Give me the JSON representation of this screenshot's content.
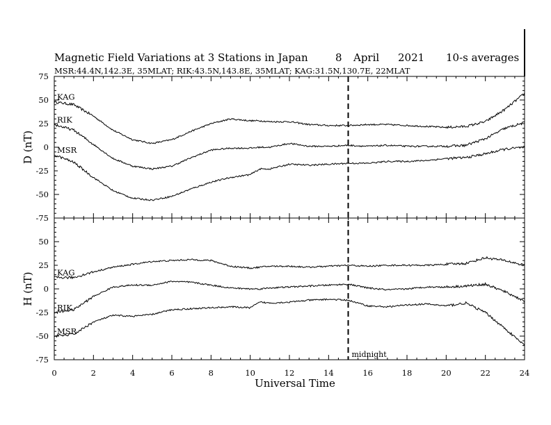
{
  "title": "Magnetic Field Variations at 3 Stations in Japan",
  "date": {
    "day": "8",
    "month": "April",
    "year": "2021"
  },
  "averaging": "10-s averages",
  "subtitle": "MSR:44.4N,142.3E, 35MLAT;  RIK:43.5N,143.8E, 35MLAT;  KAG:31.5N,130.7E, 22MLAT",
  "xlabel": "Universal Time",
  "midnight_label": "midnight",
  "midnight_ut": 15,
  "colors": {
    "line": "#000000",
    "background": "#ffffff"
  },
  "chart_data": [
    {
      "type": "line",
      "panel": "top",
      "ylabel": "D (nT)",
      "xlim": [
        0,
        24
      ],
      "ylim": [
        -75,
        75
      ],
      "xticks": [
        "0",
        "2",
        "4",
        "6",
        "8",
        "10",
        "12",
        "14",
        "16",
        "18",
        "20",
        "22",
        "24"
      ],
      "yticks": [
        "75",
        "50",
        "25",
        "0",
        "-25",
        "-50",
        "-75"
      ],
      "x": [
        0,
        1,
        2,
        3,
        4,
        5,
        6,
        7,
        8,
        9,
        10,
        10.5,
        11,
        12,
        13,
        14,
        15,
        16,
        17,
        18,
        19,
        20,
        21,
        22,
        23,
        24
      ],
      "series": [
        {
          "name": "KAG",
          "values": [
            48,
            45,
            33,
            18,
            8,
            4,
            8,
            17,
            25,
            30,
            28,
            28,
            27,
            27,
            24,
            23,
            23,
            24,
            24,
            23,
            22,
            21,
            22,
            27,
            40,
            57
          ]
        },
        {
          "name": "RIK",
          "values": [
            24,
            18,
            3,
            -12,
            -20,
            -23,
            -20,
            -11,
            -3,
            -1,
            -1,
            0,
            0,
            4,
            1,
            1,
            2,
            1,
            2,
            1,
            1,
            1,
            2,
            9,
            20,
            26
          ]
        },
        {
          "name": "MSR",
          "values": [
            -8,
            -16,
            -32,
            -46,
            -54,
            -56,
            -52,
            -44,
            -37,
            -32,
            -29,
            -23,
            -23,
            -18,
            -19,
            -18,
            -17,
            -17,
            -15,
            -15,
            -14,
            -12,
            -11,
            -7,
            -2,
            0
          ]
        }
      ]
    },
    {
      "type": "line",
      "panel": "bottom",
      "ylabel": "H (nT)",
      "xlim": [
        0,
        24
      ],
      "ylim": [
        -75,
        75
      ],
      "xticks": [
        "0",
        "2",
        "4",
        "6",
        "8",
        "10",
        "12",
        "14",
        "16",
        "18",
        "20",
        "22",
        "24"
      ],
      "yticks": [
        "75",
        "50",
        "25",
        "0",
        "-25",
        "-50",
        "-75"
      ],
      "x": [
        0,
        1,
        2,
        3,
        4,
        5,
        6,
        7,
        8,
        9,
        10,
        10.5,
        11,
        12,
        13,
        14,
        15,
        16,
        17,
        18,
        19,
        20,
        21,
        22,
        23,
        24
      ],
      "series": [
        {
          "name": "KAG",
          "values": [
            12,
            12,
            18,
            23,
            26,
            29,
            30,
            31,
            30,
            24,
            22,
            23,
            24,
            24,
            23,
            24,
            25,
            24,
            25,
            25,
            25,
            26,
            27,
            33,
            30,
            25
          ]
        },
        {
          "name": "RIK",
          "values": [
            -25,
            -22,
            -8,
            2,
            4,
            4,
            8,
            7,
            4,
            1,
            0,
            0,
            1,
            2,
            3,
            4,
            5,
            1,
            -1,
            0,
            2,
            2,
            3,
            5,
            -3,
            -13
          ]
        },
        {
          "name": "MSR",
          "values": [
            -50,
            -48,
            -35,
            -28,
            -29,
            -27,
            -22,
            -21,
            -20,
            -19,
            -20,
            -14,
            -15,
            -14,
            -12,
            -11,
            -12,
            -18,
            -19,
            -17,
            -16,
            -18,
            -15,
            -25,
            -42,
            -60
          ]
        }
      ]
    }
  ]
}
